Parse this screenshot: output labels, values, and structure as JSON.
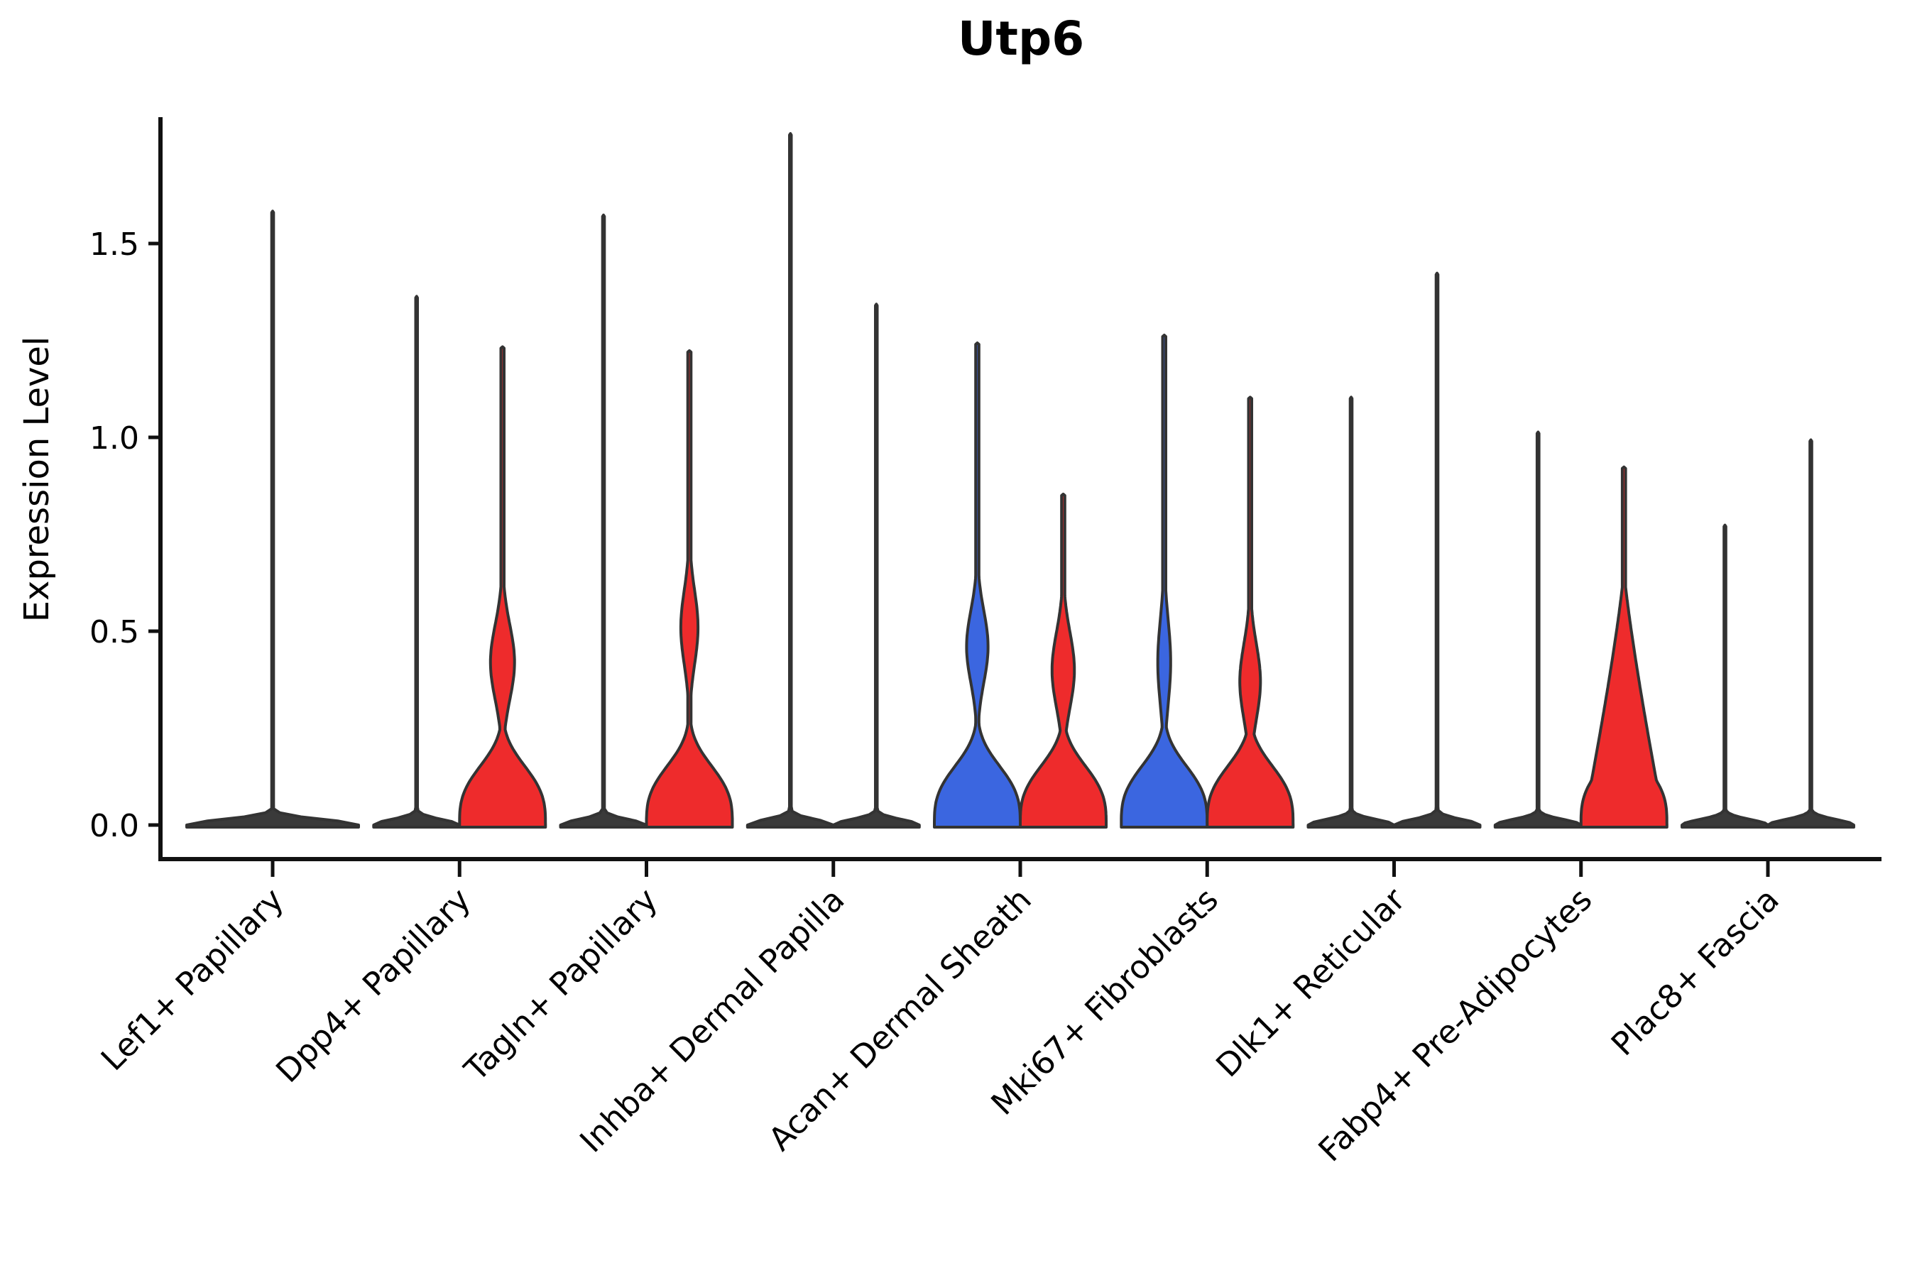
{
  "title": "Utp6",
  "y_axis": {
    "label": "Expression Level",
    "tick_labels": [
      "0.0",
      "0.5",
      "1.0",
      "1.5"
    ],
    "tick_values": [
      0.0,
      0.5,
      1.0,
      1.5
    ]
  },
  "chart_data": {
    "type": "violin",
    "title": "Utp6",
    "xlabel": "",
    "ylabel": "Expression Level",
    "ylim": [
      -0.09,
      1.83
    ],
    "yticks": [
      "0.0",
      "0.5",
      "1.0",
      "1.5"
    ],
    "ytick_values": [
      0.0,
      0.5,
      1.0,
      1.5
    ],
    "grid": false,
    "legend_position": "none",
    "split_groups": 2,
    "colors": {
      "group1": "#3B66E0",
      "group2": "#EE2B2C",
      "collapsed_fill": "#3A3A3A",
      "outline": "#333333",
      "axis": "#111111",
      "text": "#000000",
      "background": "#ffffff"
    },
    "note": "Split violin plot of Utp6 expression per fibroblast cluster; degenerate violins (expression concentrated at 0) collapse to a flat base with a thin spike to the max value.",
    "categories": [
      {
        "label": "Lef1+ Papillary",
        "violins": [
          {
            "group": "all",
            "style": "collapsed",
            "span": "full",
            "max": 1.58
          }
        ]
      },
      {
        "label": "Dpp4+ Papillary",
        "violins": [
          {
            "group": "1",
            "style": "collapsed",
            "max": 1.36
          },
          {
            "group": "2",
            "style": "filled",
            "color_key": "group2",
            "max": 1.23,
            "bulge": {
              "peak": 0.42,
              "lo": 0.2,
              "hi": 0.64,
              "w": 0.28
            }
          }
        ]
      },
      {
        "label": "Tagln+ Papillary",
        "violins": [
          {
            "group": "1",
            "style": "collapsed",
            "max": 1.57
          },
          {
            "group": "2",
            "style": "filled",
            "color_key": "group2",
            "max": 1.22,
            "bulge": {
              "peak": 0.51,
              "lo": 0.28,
              "hi": 0.71,
              "w": 0.2
            }
          }
        ]
      },
      {
        "label": "Inhba+ Dermal Papilla",
        "violins": [
          {
            "group": "1",
            "style": "collapsed",
            "max": 1.78
          },
          {
            "group": "2",
            "style": "collapsed",
            "max": 1.34
          }
        ]
      },
      {
        "label": "Acan+ Dermal Sheath",
        "violins": [
          {
            "group": "1",
            "style": "filled",
            "color_key": "group1",
            "max": 1.24,
            "bulge": {
              "peak": 0.46,
              "lo": 0.25,
              "hi": 0.67,
              "w": 0.25
            }
          },
          {
            "group": "2",
            "style": "filled",
            "color_key": "group2",
            "max": 0.85,
            "bulge": {
              "peak": 0.4,
              "lo": 0.18,
              "hi": 0.62,
              "w": 0.26
            }
          }
        ]
      },
      {
        "label": "Mki67+ Fibroblasts",
        "violins": [
          {
            "group": "1",
            "style": "filled",
            "color_key": "group1",
            "max": 1.26,
            "bulge": {
              "peak": 0.42,
              "lo": 0.16,
              "hi": 0.66,
              "w": 0.15
            }
          },
          {
            "group": "2",
            "style": "filled",
            "color_key": "group2",
            "max": 1.1,
            "bulge": {
              "peak": 0.37,
              "lo": 0.14,
              "hi": 0.58,
              "w": 0.24
            }
          }
        ]
      },
      {
        "label": "Dlk1+ Reticular",
        "violins": [
          {
            "group": "1",
            "style": "collapsed",
            "max": 1.1
          },
          {
            "group": "2",
            "style": "collapsed",
            "max": 1.42
          }
        ]
      },
      {
        "label": "Fabp4+ Pre-Adipocytes",
        "violins": [
          {
            "group": "1",
            "style": "collapsed",
            "max": 1.01
          },
          {
            "group": "2",
            "style": "filled",
            "color_key": "group2",
            "max": 0.92,
            "cone": {
              "start": 0.66,
              "exp": 1.2,
              "w": 0.95
            }
          }
        ]
      },
      {
        "label": "Plac8+ Fascia",
        "violins": [
          {
            "group": "1",
            "style": "collapsed",
            "max": 0.77
          },
          {
            "group": "2",
            "style": "collapsed",
            "max": 0.99
          }
        ]
      }
    ]
  }
}
